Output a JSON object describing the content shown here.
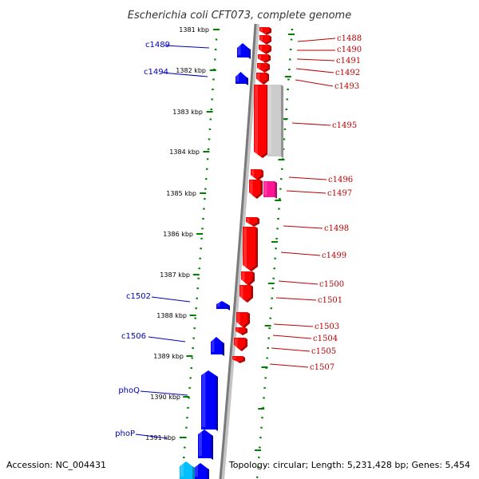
{
  "title": "Escherichia coli CFT073, complete genome",
  "footer": {
    "accession": "Accession: NC_004431",
    "topology": "Topology: circular; Length: 5,231,428 bp; Genes: 5,454"
  },
  "colors": {
    "forward_strand": "#ff0000",
    "reverse_strand": "#0000ff",
    "rna_gene": "#ff1493",
    "pseudo_gene": "#cccccc",
    "other_gene": "#00bfff",
    "backbone": "#888888",
    "tick_marks": "#008000",
    "left_label": "#0000bb",
    "right_label": "#bb0000"
  },
  "ruler": [
    "1381 kbp",
    "1382 kbp",
    "1383 kbp",
    "1384 kbp",
    "1385 kbp",
    "1386 kbp",
    "1387 kbp",
    "1388 kbp",
    "1389 kbp",
    "1390 kbp",
    "1391 kbp"
  ],
  "left_genes": [
    "c1489",
    "c1494",
    "c1502",
    "c1506",
    "phoQ",
    "phoP"
  ],
  "right_genes": [
    "c1488",
    "c1490",
    "c1491",
    "c1492",
    "c1493",
    "c1495",
    "c1496",
    "c1497",
    "c1498",
    "c1499",
    "c1500",
    "c1501",
    "c1503",
    "c1504",
    "c1505",
    "c1507"
  ]
}
